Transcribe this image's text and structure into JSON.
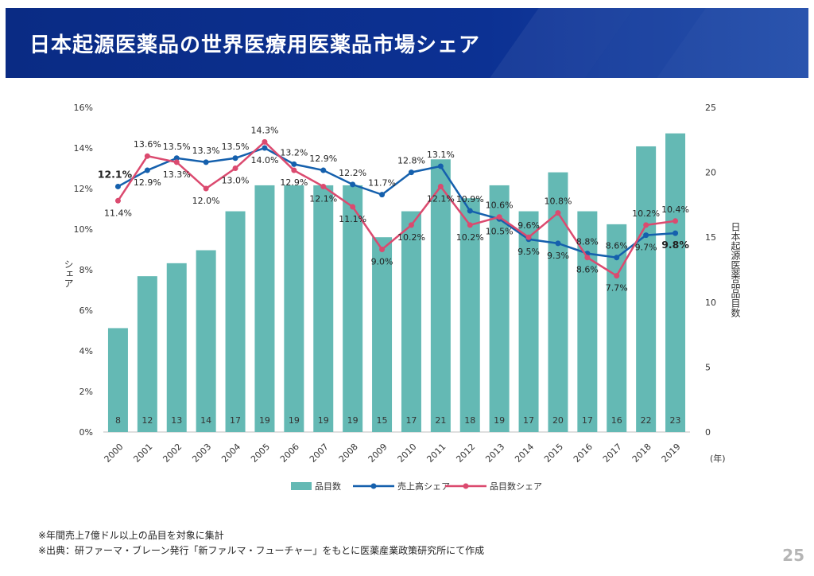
{
  "slide": {
    "title": "日本起源医薬品の世界医療用医薬品市場シェア",
    "footnote_1": "※年間売上7億ドル以上の品目を対象に集計",
    "footnote_2": "※出典：研ファーマ・ブレーン発行「新ファルマ・フューチャー」をもとに医薬産業政策研究所にて作成",
    "page_number": "25"
  },
  "colors": {
    "header": "#0c3193",
    "bar": "#64b9b4",
    "sales_line": "#1560ad",
    "count_line": "#db4a6f"
  },
  "chart_data": {
    "type": "bar+line",
    "categories": [
      "2000",
      "2001",
      "2002",
      "2003",
      "2004",
      "2005",
      "2006",
      "2007",
      "2008",
      "2009",
      "2010",
      "2011",
      "2012",
      "2013",
      "2014",
      "2015",
      "2016",
      "2017",
      "2018",
      "2019"
    ],
    "x_unit_label": "(年)",
    "y_left": {
      "label": "シェア",
      "min": 0,
      "max": 16,
      "step": 2,
      "tick_suffix": "%"
    },
    "y_right": {
      "label": "日本起源医薬品品目数",
      "min": 0,
      "max": 25,
      "step": 5
    },
    "series": [
      {
        "name": "品目数",
        "type": "bar",
        "axis": "right",
        "values": [
          8,
          12,
          13,
          14,
          17,
          19,
          19,
          19,
          19,
          15,
          17,
          21,
          18,
          19,
          17,
          20,
          17,
          16,
          22,
          23
        ]
      },
      {
        "name": "売上高シェア",
        "type": "line",
        "axis": "left",
        "values": [
          12.1,
          12.9,
          13.5,
          13.3,
          13.5,
          14.0,
          13.2,
          12.9,
          12.2,
          11.7,
          12.8,
          13.1,
          10.9,
          10.5,
          9.5,
          9.3,
          8.8,
          8.6,
          9.7,
          9.8
        ],
        "labels": [
          "12.1%",
          "12.9%",
          "13.5%",
          "13.3%",
          "13.5%",
          "14.0%",
          "13.2%",
          "12.9%",
          "12.2%",
          "11.7%",
          "12.8%",
          "13.1%",
          "10.9%",
          "10.5%",
          "9.5%",
          "9.3%",
          "8.8%",
          "8.6%",
          "9.7%",
          "9.8%"
        ]
      },
      {
        "name": "品目数シェア",
        "type": "line",
        "axis": "left",
        "values": [
          11.4,
          13.6,
          13.3,
          12.0,
          13.0,
          14.3,
          12.9,
          12.1,
          11.1,
          9.0,
          10.2,
          12.1,
          10.2,
          10.6,
          9.6,
          10.8,
          8.6,
          7.7,
          10.2,
          10.4
        ],
        "labels": [
          "11.4%",
          "13.6%",
          "13.3%",
          "12.0%",
          "13.0%",
          "14.3%",
          "12.9%",
          "12.1%",
          "11.1%",
          "9.0%",
          "10.2%",
          "12.1%",
          "10.2%",
          "10.6%",
          "9.6%",
          "10.8%",
          "8.6%",
          "7.7%",
          "10.2%",
          "10.4%"
        ]
      }
    ],
    "legend_position": "bottom",
    "grid": false
  }
}
